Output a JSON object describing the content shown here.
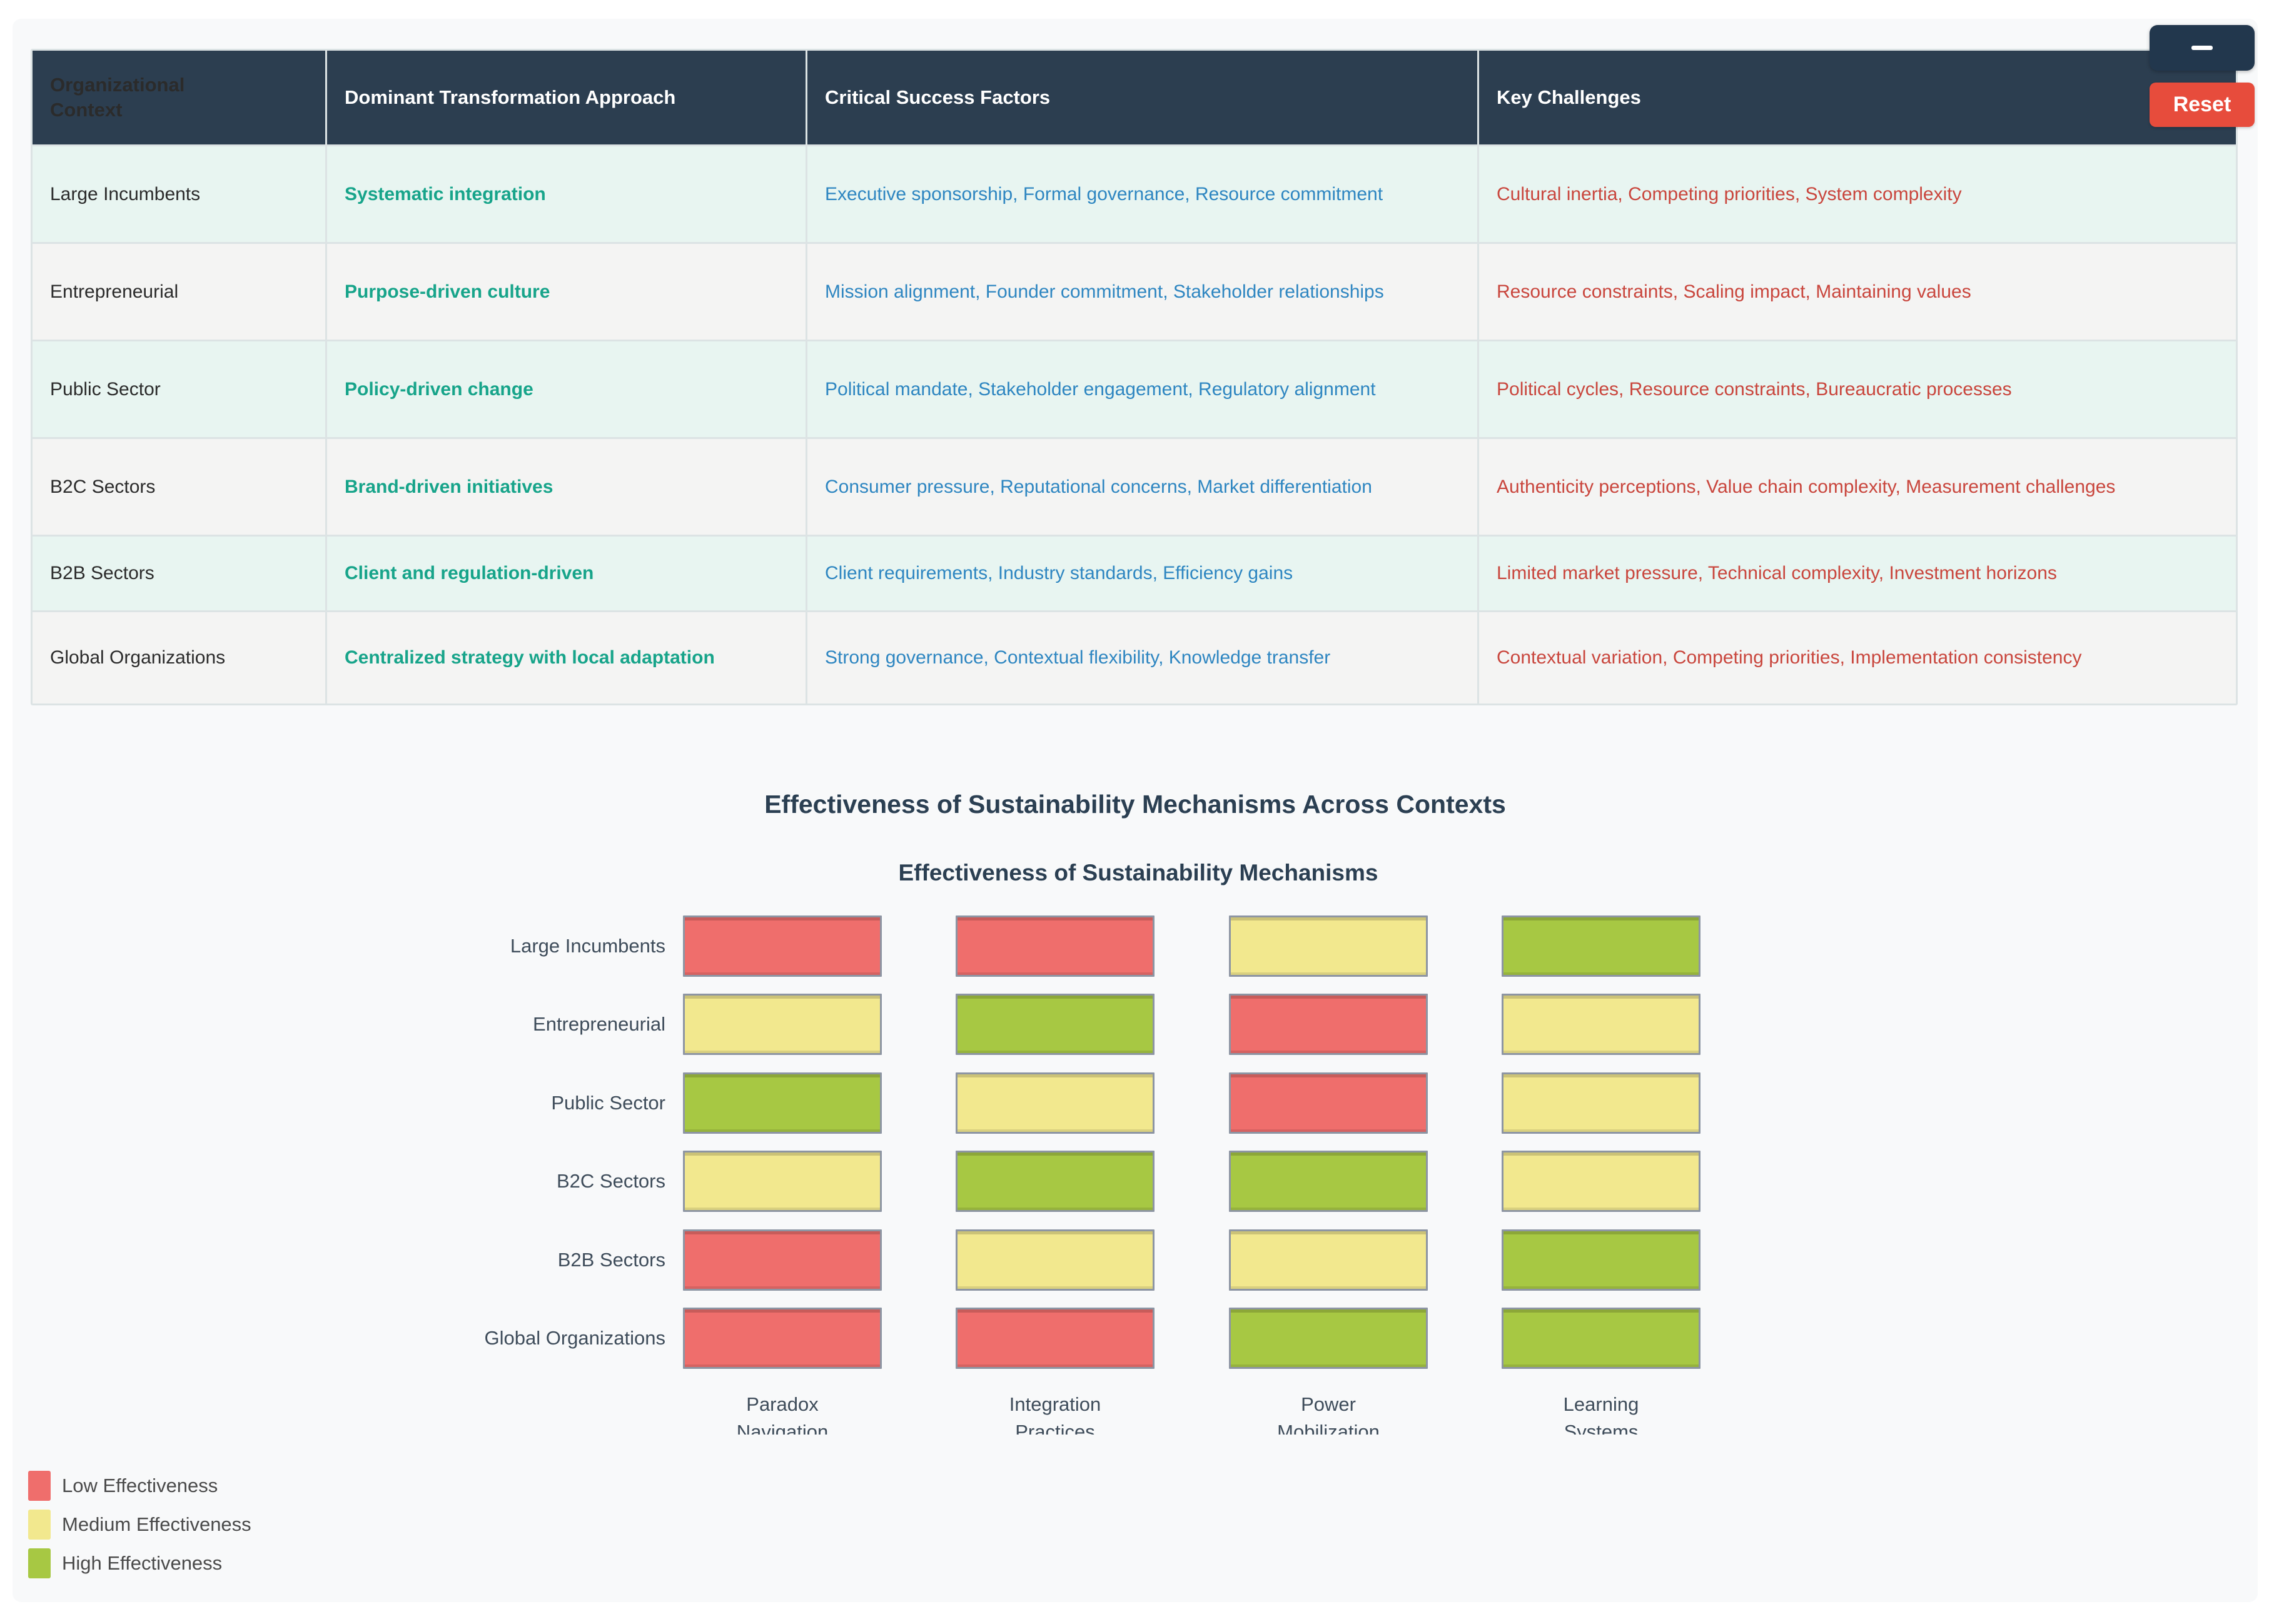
{
  "controls": {
    "collapse_label": "-",
    "reset_label": "Reset"
  },
  "table": {
    "headers": [
      "Organizational Context",
      "Dominant Transformation Approach",
      "Critical Success Factors",
      "Key Challenges"
    ],
    "rows": [
      {
        "context": "Large Incumbents",
        "approach": "Systematic integration",
        "factors": "Executive sponsorship, Formal governance, Resource commitment",
        "challenges": "Cultural inertia, Competing priorities, System complexity"
      },
      {
        "context": "Entrepreneurial",
        "approach": "Purpose-driven culture",
        "factors": "Mission alignment, Founder commitment, Stakeholder relationships",
        "challenges": "Resource constraints, Scaling impact, Maintaining values"
      },
      {
        "context": "Public Sector",
        "approach": "Policy-driven change",
        "factors": "Political mandate, Stakeholder engagement, Regulatory alignment",
        "challenges": "Political cycles, Resource constraints, Bureaucratic processes"
      },
      {
        "context": "B2C Sectors",
        "approach": "Brand-driven initiatives",
        "factors": "Consumer pressure, Reputational concerns, Market differentiation",
        "challenges": "Authenticity perceptions, Value chain complexity, Measurement challenges"
      },
      {
        "context": "B2B Sectors",
        "approach": "Client and regulation-driven",
        "factors": "Client requirements, Industry standards, Efficiency gains",
        "challenges": "Limited market pressure, Technical complexity, Investment horizons"
      },
      {
        "context": "Global Organizations",
        "approach": "Centralized strategy with local adaptation",
        "factors": "Strong governance, Contextual flexibility, Knowledge transfer",
        "challenges": "Contextual variation, Competing priorities, Implementation consistency"
      }
    ]
  },
  "section_title": "Effectiveness of Sustainability Mechanisms Across Contexts",
  "chart_data": {
    "type": "heatmap",
    "title": "Effectiveness of Sustainability Mechanisms",
    "categories": [
      "Large Incumbents",
      "Entrepreneurial",
      "Public Sector",
      "B2C Sectors",
      "B2B Sectors",
      "Global Organizations"
    ],
    "mechanisms": [
      "Paradox Navigation",
      "Integration Practices",
      "Power Mobilization",
      "Learning Systems"
    ],
    "values": [
      [
        "low",
        "low",
        "medium",
        "high"
      ],
      [
        "medium",
        "high",
        "low",
        "medium"
      ],
      [
        "high",
        "medium",
        "low",
        "medium"
      ],
      [
        "medium",
        "high",
        "high",
        "medium"
      ],
      [
        "low",
        "medium",
        "medium",
        "high"
      ],
      [
        "low",
        "low",
        "high",
        "high"
      ]
    ],
    "colors": {
      "low": "#EF6E6C",
      "medium": "#F2E88E",
      "high": "#A7C843"
    },
    "legend": [
      {
        "label": "Low Effectiveness",
        "level": "low"
      },
      {
        "label": "Medium Effectiveness",
        "level": "medium"
      },
      {
        "label": "High Effectiveness",
        "level": "high"
      }
    ],
    "legend_position": "bottom-left",
    "grid": false
  },
  "theme": {
    "header_bg": "#2C3E50",
    "approach_color": "#17A48A",
    "factors_color": "#2E86C1",
    "challenges_color": "#C9463D",
    "reset_bg": "#E74C3C",
    "collapse_bg": "#22374D"
  }
}
